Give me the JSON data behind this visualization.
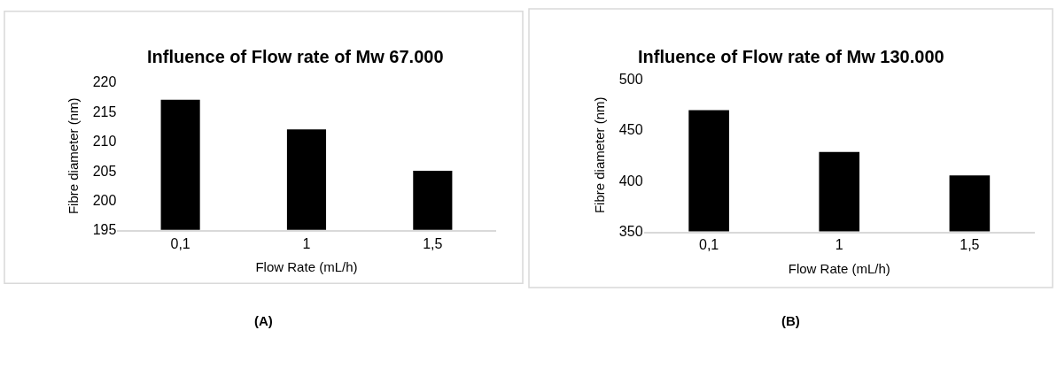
{
  "chart_data": [
    {
      "type": "bar",
      "title": "Influence of Flow rate of Mw 67.000",
      "xlabel": "Flow Rate (mL/h)",
      "ylabel": "Fibre diameter (nm)",
      "categories": [
        "0,1",
        "1",
        "1,5"
      ],
      "values": [
        217,
        212,
        205
      ],
      "color": "#000000",
      "ylim": [
        195,
        220
      ],
      "yticks": [
        195,
        200,
        205,
        210,
        215,
        220
      ],
      "grid": false,
      "annotations": [
        "(A)"
      ]
    },
    {
      "type": "bar",
      "title": "Influence of Flow rate of Mw 130.000",
      "xlabel": "Flow Rate (mL/h)",
      "ylabel": "Fibre diameter (nm)",
      "categories": [
        "0,1",
        "1",
        "1,5"
      ],
      "values": [
        469,
        428,
        405
      ],
      "color": "#000000",
      "ylim": [
        350,
        500
      ],
      "yticks": [
        350,
        400,
        450,
        500
      ],
      "grid": false,
      "annotations": [
        "(B)"
      ]
    }
  ]
}
